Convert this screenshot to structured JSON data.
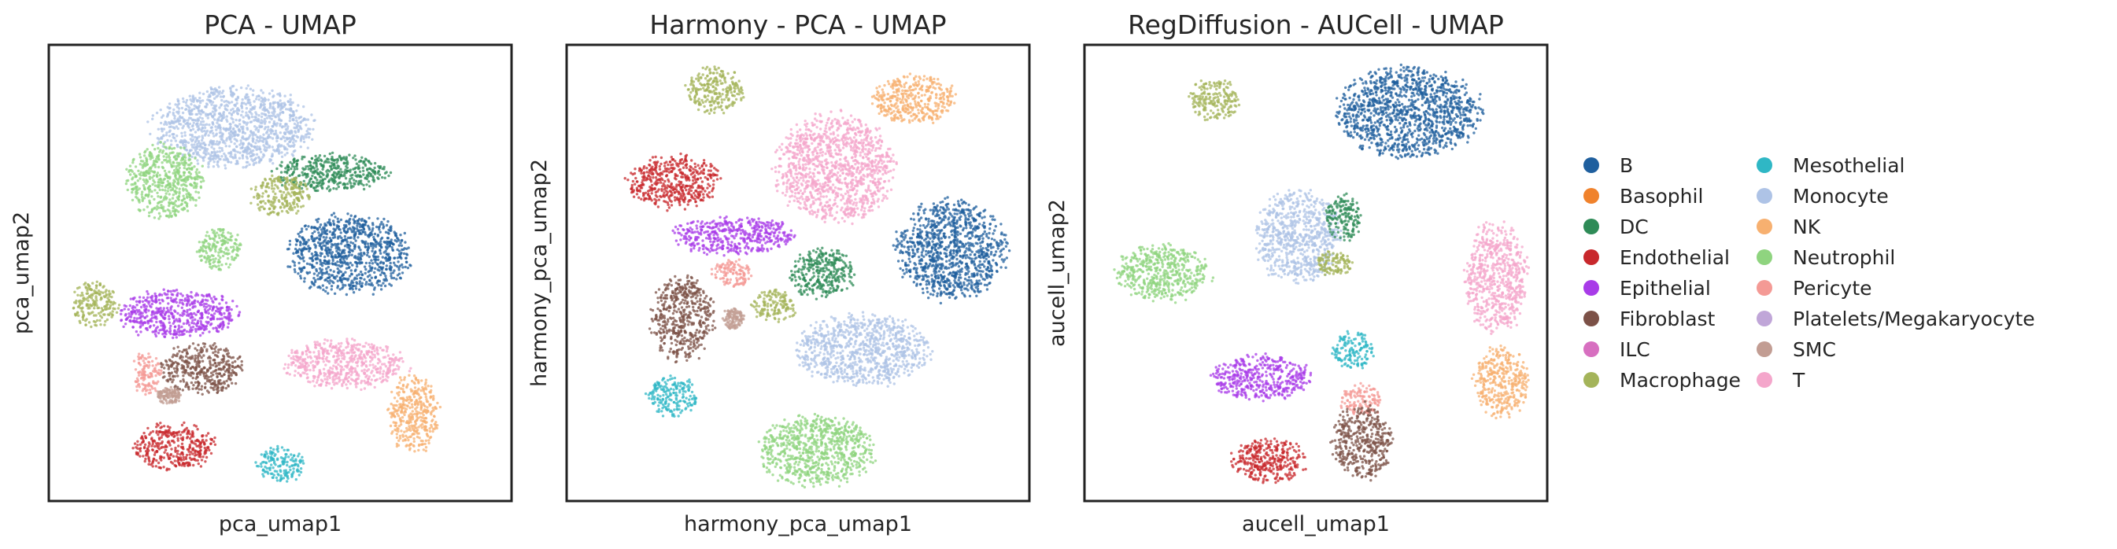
{
  "chart_data": [
    {
      "type": "scatter",
      "title": "PCA - UMAP",
      "xlabel": "pca_umap1",
      "ylabel": "pca_umap2",
      "clusters": [
        {
          "cell_type": "Monocyte",
          "x": 4.0,
          "y": 8.2,
          "rx": 1.9,
          "ry": 0.95
        },
        {
          "cell_type": "DC",
          "x": 6.1,
          "y": 7.2,
          "rx": 1.4,
          "ry": 0.45
        },
        {
          "cell_type": "Macrophage",
          "x": 5.0,
          "y": 6.7,
          "rx": 0.7,
          "ry": 0.5
        },
        {
          "cell_type": "B",
          "x": 6.5,
          "y": 5.4,
          "rx": 1.45,
          "ry": 0.95
        },
        {
          "cell_type": "Neutrophil",
          "x": 2.5,
          "y": 7.0,
          "rx": 0.9,
          "ry": 0.9
        },
        {
          "cell_type": "Neutrophil",
          "x": 3.7,
          "y": 5.5,
          "rx": 0.55,
          "ry": 0.5
        },
        {
          "cell_type": "Macrophage",
          "x": 1.0,
          "y": 4.3,
          "rx": 0.55,
          "ry": 0.55
        },
        {
          "cell_type": "Epithelial",
          "x": 2.8,
          "y": 4.1,
          "rx": 1.4,
          "ry": 0.6
        },
        {
          "cell_type": "Fibroblast",
          "x": 3.3,
          "y": 2.9,
          "rx": 1.0,
          "ry": 0.6
        },
        {
          "cell_type": "Pericyte",
          "x": 2.1,
          "y": 2.8,
          "rx": 0.35,
          "ry": 0.5
        },
        {
          "cell_type": "SMC",
          "x": 2.6,
          "y": 2.3,
          "rx": 0.3,
          "ry": 0.2
        },
        {
          "cell_type": "T",
          "x": 6.4,
          "y": 3.0,
          "rx": 1.45,
          "ry": 0.6
        },
        {
          "cell_type": "NK",
          "x": 7.9,
          "y": 1.9,
          "rx": 0.6,
          "ry": 0.95
        },
        {
          "cell_type": "Endothelial",
          "x": 2.7,
          "y": 1.2,
          "rx": 1.0,
          "ry": 0.55
        },
        {
          "cell_type": "Mesothelial",
          "x": 5.0,
          "y": 0.8,
          "rx": 0.55,
          "ry": 0.45
        }
      ]
    },
    {
      "type": "scatter",
      "title": "Harmony - PCA - UMAP",
      "xlabel": "harmony_pca_umap1",
      "ylabel": "harmony_pca_umap2",
      "clusters": [
        {
          "cell_type": "Macrophage",
          "x": 3.2,
          "y": 9.0,
          "rx": 0.7,
          "ry": 0.55
        },
        {
          "cell_type": "NK",
          "x": 7.5,
          "y": 8.8,
          "rx": 1.0,
          "ry": 0.6
        },
        {
          "cell_type": "T",
          "x": 5.8,
          "y": 7.3,
          "rx": 1.4,
          "ry": 1.3
        },
        {
          "cell_type": "Endothelial",
          "x": 2.3,
          "y": 7.0,
          "rx": 1.1,
          "ry": 0.65
        },
        {
          "cell_type": "Epithelial",
          "x": 3.6,
          "y": 5.8,
          "rx": 1.5,
          "ry": 0.45
        },
        {
          "cell_type": "DC",
          "x": 5.5,
          "y": 5.0,
          "rx": 0.8,
          "ry": 0.6
        },
        {
          "cell_type": "B",
          "x": 8.3,
          "y": 5.5,
          "rx": 1.3,
          "ry": 1.2
        },
        {
          "cell_type": "Pericyte",
          "x": 3.6,
          "y": 5.0,
          "rx": 0.5,
          "ry": 0.35
        },
        {
          "cell_type": "Macrophage",
          "x": 4.5,
          "y": 4.3,
          "rx": 0.55,
          "ry": 0.4
        },
        {
          "cell_type": "Fibroblast",
          "x": 2.5,
          "y": 4.0,
          "rx": 0.75,
          "ry": 1.0
        },
        {
          "cell_type": "SMC",
          "x": 3.6,
          "y": 4.0,
          "rx": 0.25,
          "ry": 0.25
        },
        {
          "cell_type": "Monocyte",
          "x": 6.4,
          "y": 3.3,
          "rx": 1.6,
          "ry": 0.85
        },
        {
          "cell_type": "Mesothelial",
          "x": 2.3,
          "y": 2.3,
          "rx": 0.6,
          "ry": 0.5
        },
        {
          "cell_type": "Neutrophil",
          "x": 5.4,
          "y": 1.1,
          "rx": 1.4,
          "ry": 0.85
        }
      ]
    },
    {
      "type": "scatter",
      "title": "RegDiffusion - AUCell - UMAP",
      "xlabel": "aucell_umap1",
      "ylabel": "aucell_umap2",
      "clusters": [
        {
          "cell_type": "Macrophage",
          "x": 2.8,
          "y": 8.8,
          "rx": 0.6,
          "ry": 0.5
        },
        {
          "cell_type": "B",
          "x": 7.0,
          "y": 8.5,
          "rx": 1.7,
          "ry": 1.1
        },
        {
          "cell_type": "Monocyte",
          "x": 4.6,
          "y": 5.8,
          "rx": 1.0,
          "ry": 1.1
        },
        {
          "cell_type": "DC",
          "x": 5.6,
          "y": 6.2,
          "rx": 0.45,
          "ry": 0.55
        },
        {
          "cell_type": "Macrophage",
          "x": 5.4,
          "y": 5.2,
          "rx": 0.45,
          "ry": 0.3
        },
        {
          "cell_type": "Neutrophil",
          "x": 1.7,
          "y": 5.0,
          "rx": 1.1,
          "ry": 0.7
        },
        {
          "cell_type": "T",
          "x": 8.9,
          "y": 4.9,
          "rx": 0.75,
          "ry": 1.3
        },
        {
          "cell_type": "NK",
          "x": 9.0,
          "y": 2.6,
          "rx": 0.65,
          "ry": 0.85
        },
        {
          "cell_type": "Mesothelial",
          "x": 5.8,
          "y": 3.3,
          "rx": 0.5,
          "ry": 0.45
        },
        {
          "cell_type": "Epithelial",
          "x": 3.8,
          "y": 2.7,
          "rx": 1.2,
          "ry": 0.55
        },
        {
          "cell_type": "Pericyte",
          "x": 6.0,
          "y": 2.2,
          "rx": 0.5,
          "ry": 0.4
        },
        {
          "cell_type": "Endothelial",
          "x": 4.0,
          "y": 0.9,
          "rx": 0.9,
          "ry": 0.55
        },
        {
          "cell_type": "Fibroblast",
          "x": 6.0,
          "y": 1.3,
          "rx": 0.7,
          "ry": 0.9
        }
      ]
    }
  ],
  "legend": {
    "items": [
      {
        "label": "B",
        "color": "#1f5f9e"
      },
      {
        "label": "Basophil",
        "color": "#f0822c"
      },
      {
        "label": "DC",
        "color": "#2e8b57"
      },
      {
        "label": "Endothelial",
        "color": "#c8282c"
      },
      {
        "label": "Epithelial",
        "color": "#a83be8"
      },
      {
        "label": "Fibroblast",
        "color": "#7c5147"
      },
      {
        "label": "ILC",
        "color": "#d76fc0"
      },
      {
        "label": "Macrophage",
        "color": "#a4b45a"
      },
      {
        "label": "Mesothelial",
        "color": "#2fb7c5"
      },
      {
        "label": "Monocyte",
        "color": "#aec3e6"
      },
      {
        "label": "NK",
        "color": "#f7b070"
      },
      {
        "label": "Neutrophil",
        "color": "#8fd47f"
      },
      {
        "label": "Pericyte",
        "color": "#f49a95"
      },
      {
        "label": "Platelets/Megakaryocyte",
        "color": "#c0a6d8"
      },
      {
        "label": "SMC",
        "color": "#c29d93"
      },
      {
        "label": "T",
        "color": "#f4a6cb"
      }
    ]
  }
}
